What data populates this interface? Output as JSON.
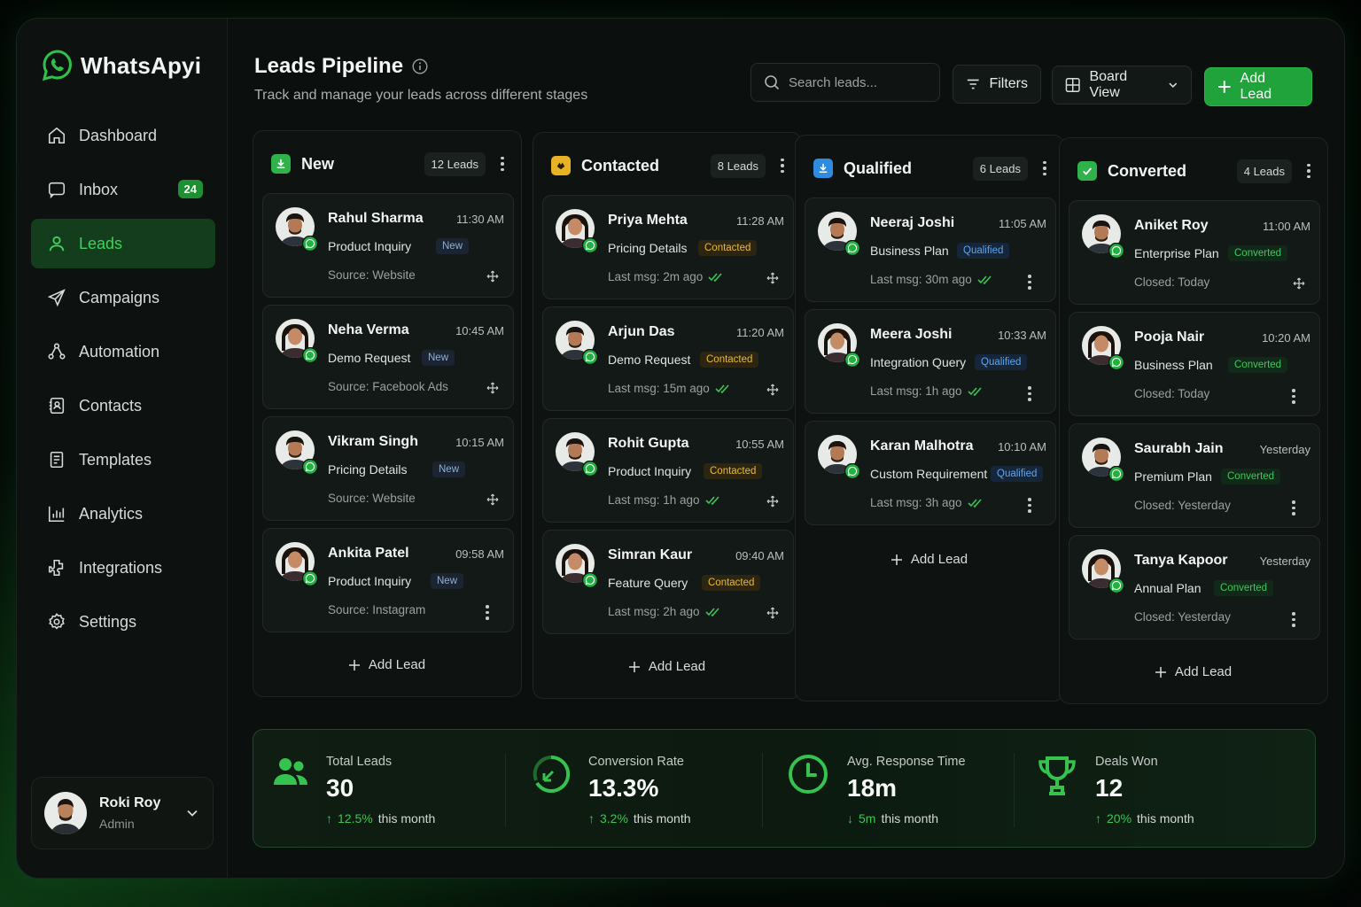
{
  "app": {
    "name": "WhatsApyi"
  },
  "sidebar": {
    "items": [
      {
        "label": "Dashboard",
        "icon": "home-icon"
      },
      {
        "label": "Inbox",
        "icon": "inbox-icon",
        "badge": "24"
      },
      {
        "label": "Leads",
        "icon": "user-icon",
        "active": true
      },
      {
        "label": "Campaigns",
        "icon": "send-icon"
      },
      {
        "label": "Automation",
        "icon": "automation-icon"
      },
      {
        "label": "Contacts",
        "icon": "contacts-icon"
      },
      {
        "label": "Templates",
        "icon": "template-icon"
      },
      {
        "label": "Analytics",
        "icon": "analytics-icon"
      },
      {
        "label": "Integrations",
        "icon": "integrations-icon"
      },
      {
        "label": "Settings",
        "icon": "gear-icon"
      }
    ],
    "user": {
      "name": "Roki Roy",
      "role": "Admin"
    }
  },
  "header": {
    "title": "Leads Pipeline",
    "subtitle": "Track and manage your leads across different stages",
    "search_placeholder": "Search leads...",
    "filters_label": "Filters",
    "view_label": "Board View",
    "add_label": "Add Lead"
  },
  "columns": [
    {
      "title": "New",
      "count": "12 Leads",
      "color": "#2fb24a",
      "tag_class": "tag-new",
      "add_label": "Add Lead",
      "cards": [
        {
          "name": "Rahul Sharma",
          "time": "11:30 AM",
          "topic": "Product Inquiry",
          "tag": "New",
          "foot": "Source: Website",
          "gender": "m"
        },
        {
          "name": "Neha Verma",
          "time": "10:45 AM",
          "topic": "Demo Request",
          "tag": "New",
          "foot": "Source: Facebook Ads",
          "gender": "f"
        },
        {
          "name": "Vikram Singh",
          "time": "10:15 AM",
          "topic": "Pricing Details",
          "tag": "New",
          "foot": "Source: Website",
          "gender": "m"
        },
        {
          "name": "Ankita Patel",
          "time": "09:58 AM",
          "topic": "Product Inquiry",
          "tag": "New",
          "foot": "Source: Instagram",
          "gender": "f"
        }
      ]
    },
    {
      "title": "Contacted",
      "count": "8 Leads",
      "color": "#e8b224",
      "tag_class": "tag-contacted",
      "add_label": "Add Lead",
      "cards": [
        {
          "name": "Priya Mehta",
          "time": "11:28 AM",
          "topic": "Pricing Details",
          "tag": "Contacted",
          "foot": "Last msg: 2m ago",
          "gender": "f"
        },
        {
          "name": "Arjun Das",
          "time": "11:20 AM",
          "topic": "Demo Request",
          "tag": "Contacted",
          "foot": "Last msg: 15m ago",
          "gender": "m"
        },
        {
          "name": "Rohit Gupta",
          "time": "10:55 AM",
          "topic": "Product Inquiry",
          "tag": "Contacted",
          "foot": "Last msg: 1h ago",
          "gender": "m"
        },
        {
          "name": "Simran Kaur",
          "time": "09:40 AM",
          "topic": "Feature Query",
          "tag": "Contacted",
          "foot": "Last msg: 2h ago",
          "gender": "f"
        }
      ]
    },
    {
      "title": "Qualified",
      "count": "6 Leads",
      "color": "#2f8be0",
      "tag_class": "tag-qualified",
      "add_label": "Add Lead",
      "cards": [
        {
          "name": "Neeraj Joshi",
          "time": "11:05 AM",
          "topic": "Business Plan",
          "tag": "Qualified",
          "foot": "Last msg: 30m ago",
          "gender": "m"
        },
        {
          "name": "Meera Joshi",
          "time": "10:33 AM",
          "topic": "Integration Query",
          "tag": "Qualified",
          "foot": "Last msg: 1h ago",
          "gender": "f"
        },
        {
          "name": "Karan Malhotra",
          "time": "10:10 AM",
          "topic": "Custom Requirement",
          "tag": "Qualified",
          "foot": "Last msg: 3h ago",
          "gender": "m"
        }
      ]
    },
    {
      "title": "Converted",
      "count": "4 Leads",
      "color": "#2fb24a",
      "tag_class": "tag-converted",
      "add_label": "Add Lead",
      "cards": [
        {
          "name": "Aniket Roy",
          "time": "11:00 AM",
          "topic": "Enterprise Plan",
          "tag": "Converted",
          "foot": "Closed: Today",
          "gender": "m"
        },
        {
          "name": "Pooja Nair",
          "time": "10:20 AM",
          "topic": "Business Plan",
          "tag": "Converted",
          "foot": "Closed: Today",
          "gender": "f"
        },
        {
          "name": "Saurabh Jain",
          "time": "Yesterday",
          "topic": "Premium Plan",
          "tag": "Converted",
          "foot": "Closed: Yesterday",
          "gender": "m"
        },
        {
          "name": "Tanya Kapoor",
          "time": "Yesterday",
          "topic": "Annual Plan",
          "tag": "Converted",
          "foot": "Closed: Yesterday",
          "gender": "f"
        }
      ]
    }
  ],
  "stats": [
    {
      "label": "Total Leads",
      "value": "30",
      "delta": "12.5%",
      "delta_suffix": "this month",
      "dir": "up",
      "icon": "users-icon"
    },
    {
      "label": "Conversion Rate",
      "value": "13.3%",
      "delta": "3.2%",
      "delta_suffix": "this month",
      "dir": "up",
      "icon": "conversion-icon"
    },
    {
      "label": "Avg. Response Time",
      "value": "18m",
      "delta": "5m",
      "delta_suffix": "this month",
      "dir": "down",
      "icon": "clock-icon"
    },
    {
      "label": "Deals Won",
      "value": "12",
      "delta": "20%",
      "delta_suffix": "this month",
      "dir": "up",
      "icon": "trophy-icon"
    }
  ],
  "colors": {
    "accent": "#2fb24a",
    "accent_text": "#3fd25b",
    "background": "#0b0f0d"
  }
}
